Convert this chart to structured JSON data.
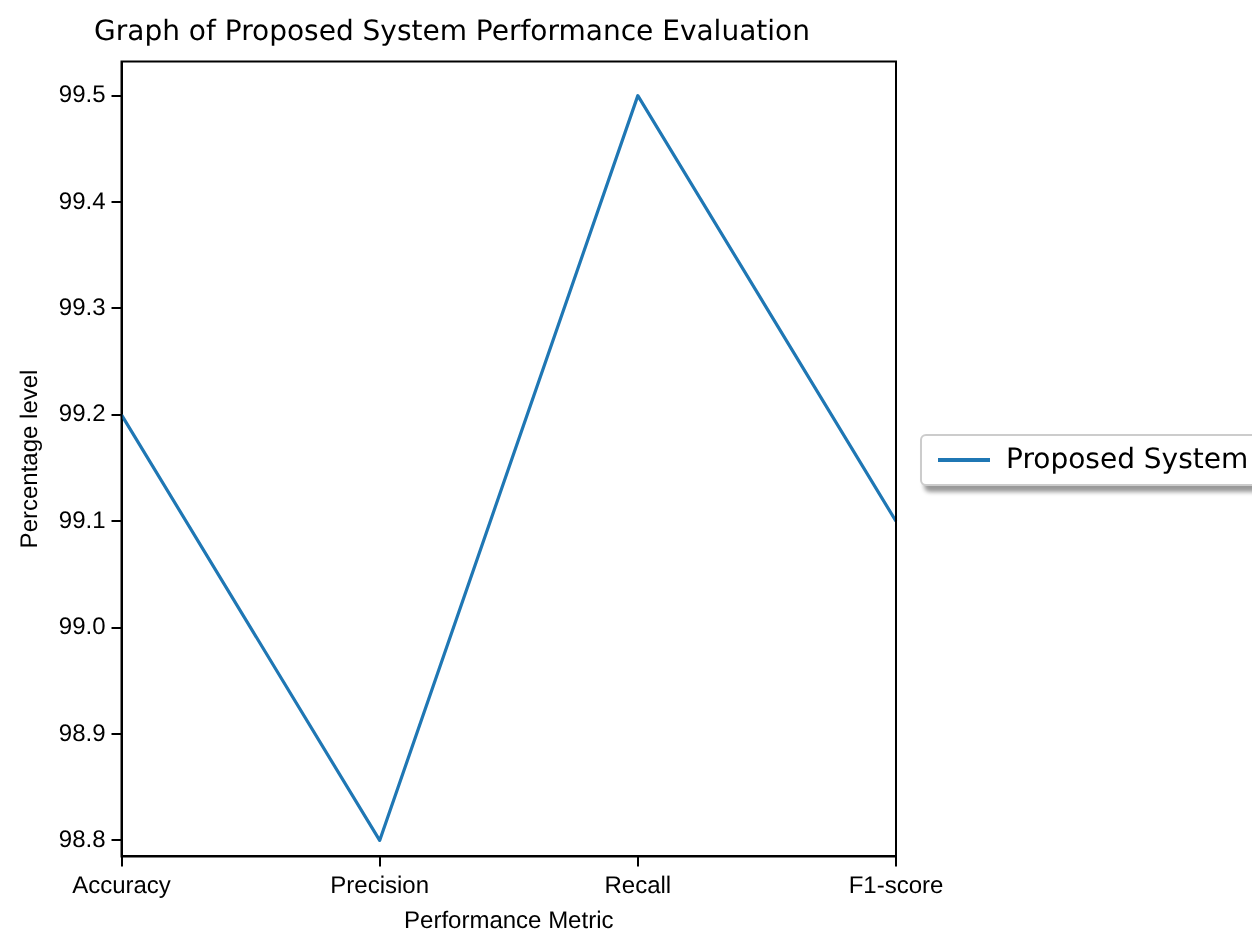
{
  "chart_data": {
    "type": "line",
    "title": "Graph of Proposed System Performance Evaluation",
    "xlabel": "Performance Metric",
    "ylabel": "Percentage level",
    "categories": [
      "Accuracy",
      "Precision",
      "Recall",
      "F1-score"
    ],
    "series": [
      {
        "name": "Proposed System",
        "color": "#1f77b4",
        "values": [
          99.2,
          98.8,
          99.5,
          99.1
        ]
      }
    ],
    "ylim": [
      98.785,
      99.532
    ],
    "yticks": [
      98.8,
      98.9,
      {
        "value": 99.0,
        "label": "99.0"
      },
      99.1,
      99.2,
      99.3,
      99.4,
      99.5
    ],
    "grid": false,
    "legend": "right",
    "marker": "none",
    "line_style": "solid"
  }
}
